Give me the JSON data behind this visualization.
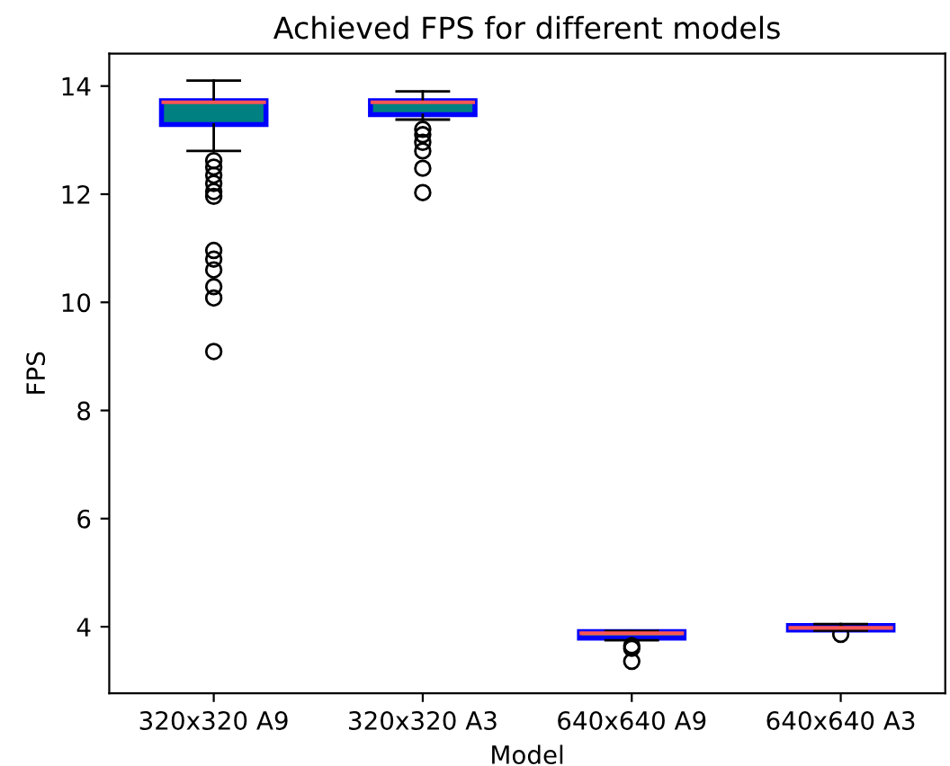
{
  "chart_data": {
    "type": "box",
    "title": "Achieved FPS for different models",
    "xlabel": "Model",
    "ylabel": "FPS",
    "categories": [
      "320x320 A9",
      "320x320 A3",
      "640x640 A9",
      "640x640 A3"
    ],
    "boxes": [
      {
        "low": 12.8,
        "q1": 13.29,
        "median": 13.7,
        "q3": 13.73,
        "high": 14.1,
        "outliers": [
          12.62,
          12.5,
          12.35,
          12.2,
          12.05,
          11.96,
          10.96,
          10.8,
          10.6,
          10.29,
          10.08,
          9.09
        ]
      },
      {
        "low": 13.38,
        "q1": 13.47,
        "median": 13.7,
        "q3": 13.73,
        "high": 13.9,
        "outliers": [
          13.2,
          13.1,
          12.96,
          12.8,
          12.48,
          12.03
        ]
      },
      {
        "low": 3.75,
        "q1": 3.79,
        "median": 3.88,
        "q3": 3.91,
        "high": 3.92,
        "outliers": [
          3.65,
          3.6,
          3.36
        ]
      },
      {
        "low": 3.93,
        "q1": 3.94,
        "median": 3.98,
        "q3": 4.02,
        "high": 4.05,
        "outliers": [
          3.86
        ]
      }
    ],
    "colors": [
      "#008080",
      "#008080",
      "#008080",
      "#008080"
    ],
    "ylim": [
      2.77,
      14.6
    ],
    "yticks": [
      4,
      6,
      8,
      10,
      12,
      14
    ],
    "grid": false
  }
}
